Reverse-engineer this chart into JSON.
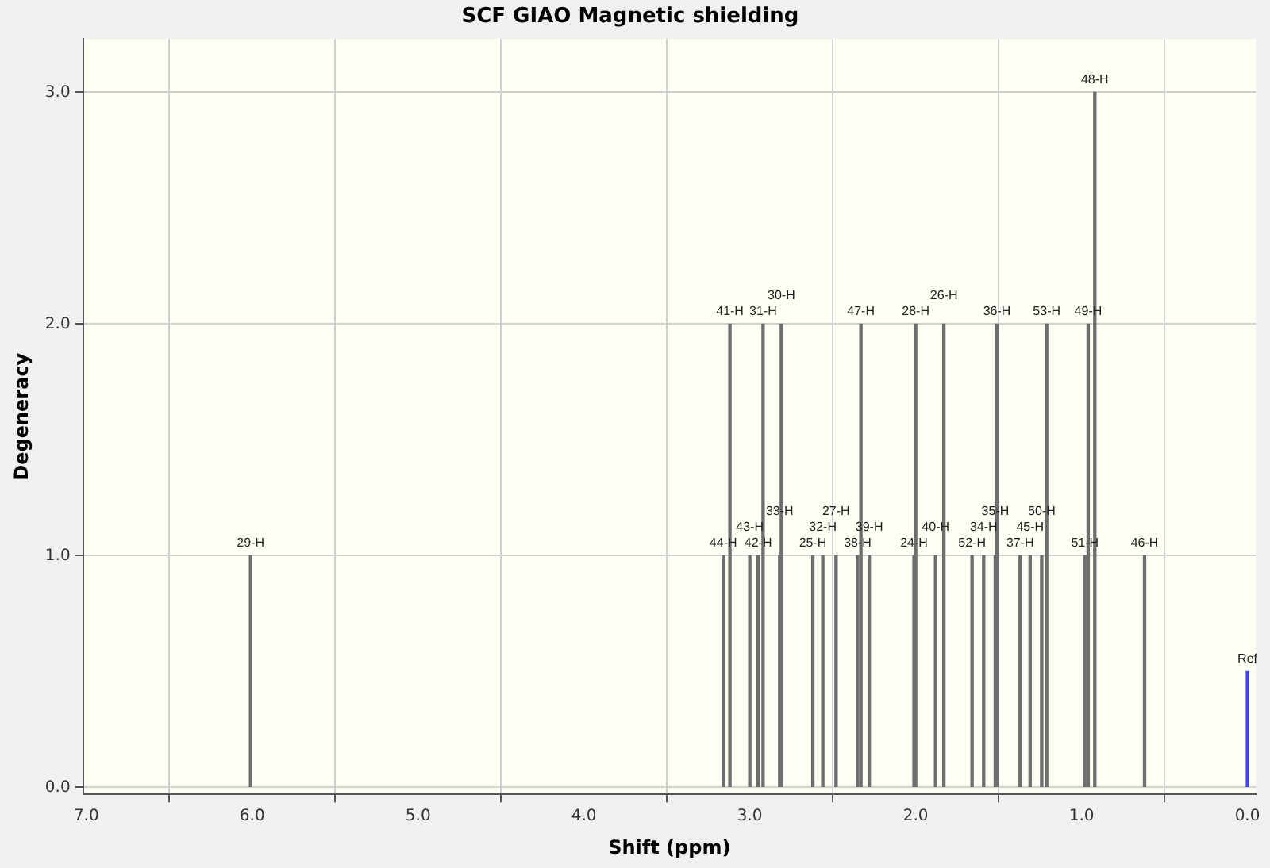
{
  "chart_data": {
    "type": "bar",
    "title": "SCF GIAO Magnetic shielding",
    "xlabel": "Shift (ppm)",
    "ylabel": "Degeneracy",
    "xlim": [
      7.02,
      -0.05
    ],
    "ylim": [
      -0.03,
      3.23
    ],
    "xticks": [
      {
        "value": 7,
        "label": "7.0"
      },
      {
        "value": 6,
        "label": "6.0"
      },
      {
        "value": 5,
        "label": "5.0"
      },
      {
        "value": 4,
        "label": "4.0"
      },
      {
        "value": 3,
        "label": "3.0"
      },
      {
        "value": 2,
        "label": "2.0"
      },
      {
        "value": 1,
        "label": "1.0"
      },
      {
        "value": 0,
        "label": "0.0"
      }
    ],
    "yticks": [
      {
        "value": 0,
        "label": "0.0"
      },
      {
        "value": 1,
        "label": "1.0"
      },
      {
        "value": 2,
        "label": "2.0"
      },
      {
        "value": 3,
        "label": "3.0"
      }
    ],
    "grid": true,
    "legend": false,
    "series": [
      {
        "color": "#6e6e6e",
        "x": [
          6.01,
          3.16,
          3.12,
          3.0,
          2.95,
          2.92,
          2.82,
          2.81,
          2.62,
          2.56,
          2.48,
          2.35,
          2.33,
          2.28,
          2.01,
          2.0,
          1.88,
          1.83,
          1.66,
          1.59,
          1.52,
          1.51,
          1.37,
          1.31,
          1.24,
          1.21,
          0.98,
          0.96,
          0.92,
          0.62
        ],
        "values": [
          1,
          1,
          2,
          1,
          1,
          2,
          1,
          2,
          1,
          1,
          1,
          1,
          2,
          1,
          1,
          2,
          1,
          2,
          1,
          1,
          1,
          2,
          1,
          1,
          1,
          2,
          1,
          2,
          3,
          1
        ]
      },
      {
        "color": "#4040ff",
        "x": [
          0
        ],
        "values": [
          0.5
        ]
      }
    ],
    "annotations": [
      {
        "text": "29-H",
        "x": 6.01,
        "y": 1
      },
      {
        "text": "44-H",
        "x": 3.16,
        "y": 1
      },
      {
        "text": "41-H",
        "x": 3.12,
        "y": 2
      },
      {
        "text": "43-H",
        "x": 3.0,
        "y": 1
      },
      {
        "text": "42-H",
        "x": 2.95,
        "y": 1
      },
      {
        "text": "31-H",
        "x": 2.92,
        "y": 2
      },
      {
        "text": "33-H",
        "x": 2.82,
        "y": 1
      },
      {
        "text": "30-H",
        "x": 2.81,
        "y": 2
      },
      {
        "text": "25-H",
        "x": 2.62,
        "y": 1
      },
      {
        "text": "32-H",
        "x": 2.56,
        "y": 1
      },
      {
        "text": "27-H",
        "x": 2.48,
        "y": 1
      },
      {
        "text": "38-H",
        "x": 2.35,
        "y": 1
      },
      {
        "text": "47-H",
        "x": 2.33,
        "y": 2
      },
      {
        "text": "39-H",
        "x": 2.28,
        "y": 1
      },
      {
        "text": "24-H",
        "x": 2.01,
        "y": 1
      },
      {
        "text": "28-H",
        "x": 2.0,
        "y": 2
      },
      {
        "text": "40-H",
        "x": 1.88,
        "y": 1
      },
      {
        "text": "26-H",
        "x": 1.83,
        "y": 2
      },
      {
        "text": "52-H",
        "x": 1.66,
        "y": 1
      },
      {
        "text": "34-H",
        "x": 1.59,
        "y": 1
      },
      {
        "text": "35-H",
        "x": 1.52,
        "y": 1
      },
      {
        "text": "36-H",
        "x": 1.51,
        "y": 2
      },
      {
        "text": "37-H",
        "x": 1.37,
        "y": 1
      },
      {
        "text": "45-H",
        "x": 1.31,
        "y": 1
      },
      {
        "text": "50-H",
        "x": 1.24,
        "y": 1
      },
      {
        "text": "53-H",
        "x": 1.21,
        "y": 2
      },
      {
        "text": "51-H",
        "x": 0.98,
        "y": 1
      },
      {
        "text": "49-H",
        "x": 0.96,
        "y": 2
      },
      {
        "text": "48-H",
        "x": 0.92,
        "y": 3
      },
      {
        "text": "46-H",
        "x": 0.62,
        "y": 1
      },
      {
        "text": "Ref",
        "x": 0,
        "y": 0.5
      }
    ]
  }
}
